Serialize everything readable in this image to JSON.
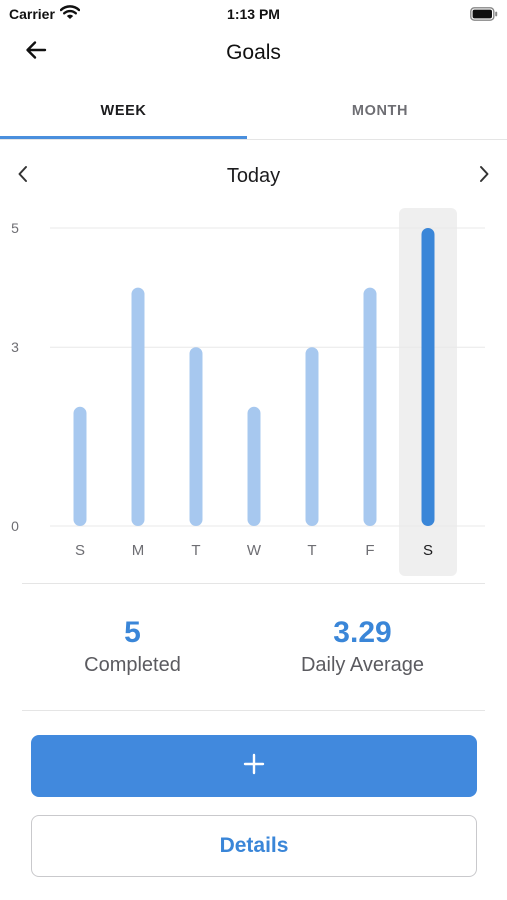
{
  "status_bar": {
    "carrier": "Carrier",
    "time": "1:13 PM"
  },
  "nav": {
    "title": "Goals",
    "back_icon": "arrow-left-icon"
  },
  "tabs": [
    {
      "label": "WEEK",
      "active": true
    },
    {
      "label": "MONTH",
      "active": false
    }
  ],
  "date_nav": {
    "label": "Today",
    "prev_icon": "chevron-left-icon",
    "next_icon": "chevron-right-icon"
  },
  "chart_data": {
    "type": "bar",
    "categories": [
      "S",
      "M",
      "T",
      "W",
      "T",
      "F",
      "S"
    ],
    "values": [
      2,
      4,
      3,
      2,
      3,
      4,
      5
    ],
    "y_ticks": [
      "5",
      "3",
      "0"
    ],
    "y_tick_values": [
      5,
      3,
      0
    ],
    "ylim": [
      0,
      5
    ],
    "highlighted_index": 6,
    "grid": true,
    "colors": {
      "bar": "#a7c8ef",
      "bar_highlight": "#3a86d8",
      "highlight_bg": "#efefef",
      "grid": "#e8e8e8"
    }
  },
  "stats": {
    "completed_value": "5",
    "completed_label": "Completed",
    "average_value": "3.29",
    "average_label": "Daily Average"
  },
  "actions": {
    "add_icon": "plus-icon",
    "details_label": "Details"
  },
  "colors": {
    "accent": "#3a86d8",
    "button_primary": "#4189dd"
  }
}
